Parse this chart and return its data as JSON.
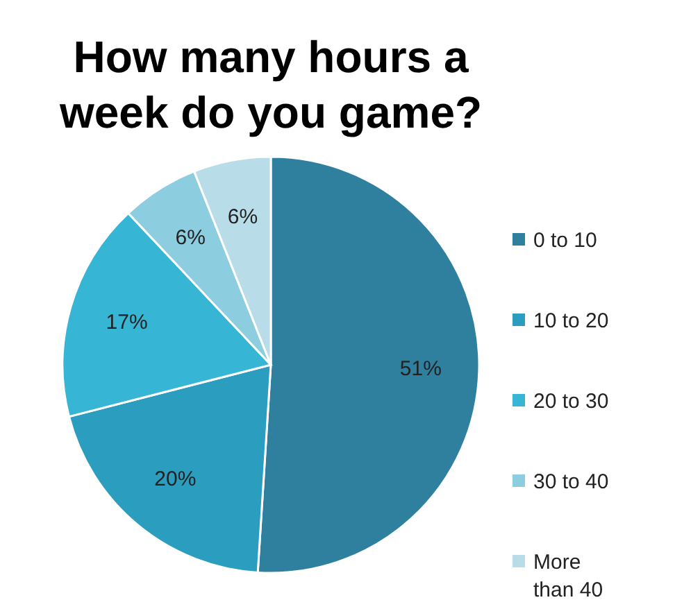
{
  "chart_data": {
    "type": "pie",
    "title": "How many hours a week do you game?",
    "categories": [
      "0 to 10",
      "10 to 20",
      "20 to 30",
      "30 to 40",
      "More than 40"
    ],
    "values": [
      51,
      20,
      17,
      6,
      6
    ],
    "colors": [
      "#2f7f9f",
      "#2b9dbf",
      "#37b5d5",
      "#8ccde0",
      "#b9dde8"
    ],
    "value_labels": [
      "51%",
      "20%",
      "17%",
      "6%",
      "6%"
    ],
    "legend": "right"
  }
}
